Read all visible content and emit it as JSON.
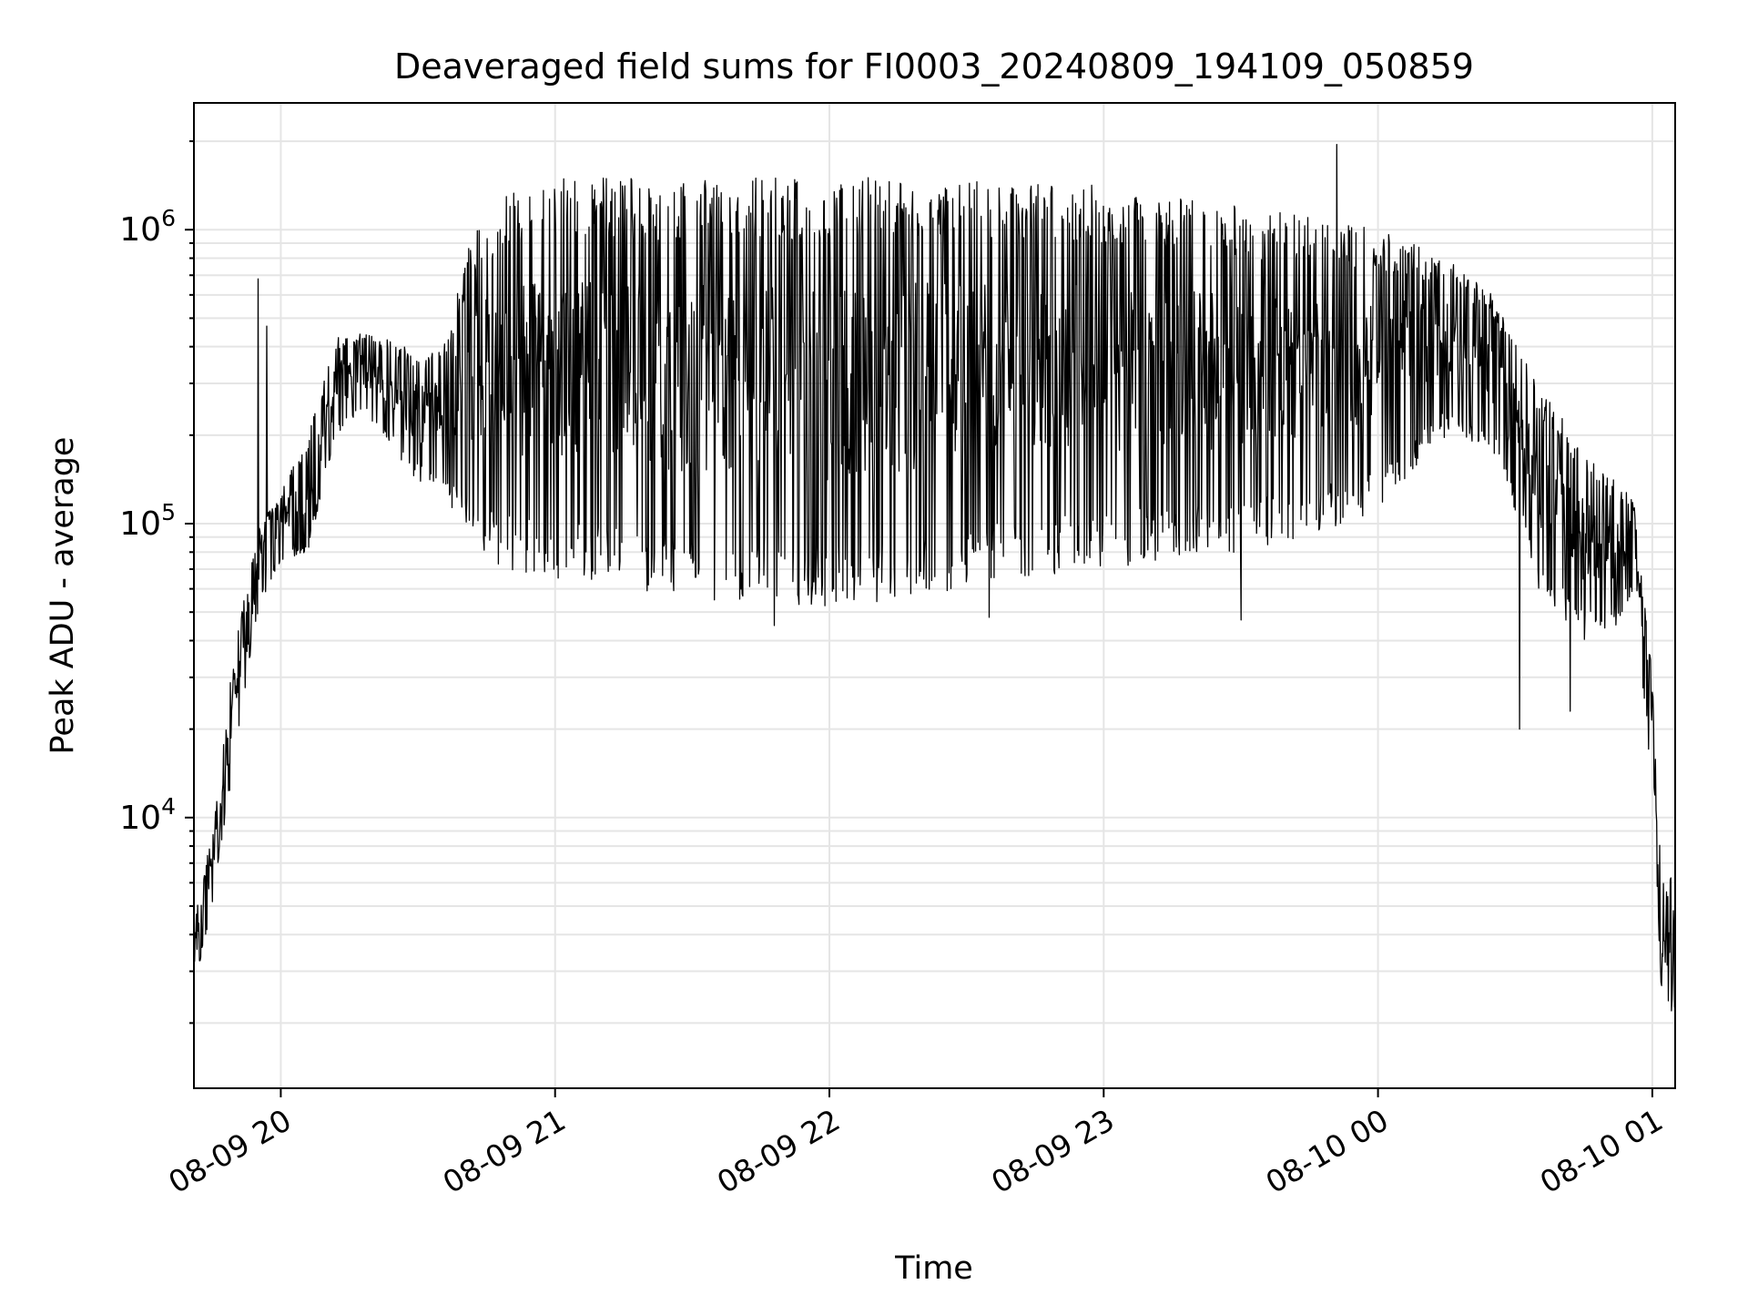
{
  "chart_data": {
    "type": "line",
    "title": "Deaveraged field sums for FI0003_20240809_194109_050859",
    "xlabel": "Time",
    "ylabel": "Peak ADU - average",
    "x_scale": "time",
    "y_scale": "log",
    "xlim": [
      "2024-08-09T19:41",
      "2024-08-10T01:05"
    ],
    "ylim": [
      1200,
      2700000
    ],
    "grid": true,
    "legend": "none",
    "colors": {
      "line": "#000000",
      "grid": "#e5e5e5",
      "axes": "#000000"
    },
    "x_ticks": [
      {
        "value": "2024-08-09T20:00",
        "label": "08-09 20"
      },
      {
        "value": "2024-08-09T21:00",
        "label": "08-09 21"
      },
      {
        "value": "2024-08-09T22:00",
        "label": "08-09 22"
      },
      {
        "value": "2024-08-09T23:00",
        "label": "08-09 23"
      },
      {
        "value": "2024-08-10T00:00",
        "label": "08-10 00"
      },
      {
        "value": "2024-08-10T01:00",
        "label": "08-10 01"
      }
    ],
    "y_ticks": [
      {
        "value": 10000,
        "base": "10",
        "exp": "4"
      },
      {
        "value": 100000,
        "base": "10",
        "exp": "5"
      },
      {
        "value": 1000000,
        "base": "10",
        "exp": "6"
      }
    ],
    "series": [
      {
        "color": "#000000",
        "envelope": {
          "x": [
            "2024-08-09T19:41",
            "2024-08-09T19:45",
            "2024-08-09T19:50",
            "2024-08-09T19:55",
            "2024-08-09T20:00",
            "2024-08-09T20:06",
            "2024-08-09T20:12",
            "2024-08-09T20:18",
            "2024-08-09T20:24",
            "2024-08-09T20:30",
            "2024-08-09T20:36",
            "2024-08-09T20:42",
            "2024-08-09T20:48",
            "2024-08-09T21:00",
            "2024-08-09T21:15",
            "2024-08-09T21:30",
            "2024-08-09T21:45",
            "2024-08-09T22:00",
            "2024-08-09T22:15",
            "2024-08-09T22:30",
            "2024-08-09T22:45",
            "2024-08-09T23:00",
            "2024-08-09T23:15",
            "2024-08-09T23:30",
            "2024-08-09T23:45",
            "2024-08-10T00:00",
            "2024-08-10T00:15",
            "2024-08-10T00:25",
            "2024-08-10T00:35",
            "2024-08-10T00:45",
            "2024-08-10T00:52",
            "2024-08-10T00:56",
            "2024-08-10T01:00",
            "2024-08-10T01:02",
            "2024-08-10T01:05"
          ],
          "upper": [
            4500,
            9000,
            40000,
            95000,
            130000,
            200000,
            430000,
            450000,
            420000,
            380000,
            430000,
            1000000,
            1300000,
            1500000,
            1500000,
            1500000,
            1500000,
            1500000,
            1550000,
            1500000,
            1500000,
            1400000,
            1300000,
            1200000,
            1100000,
            1000000,
            800000,
            600000,
            300000,
            180000,
            140000,
            120000,
            30000,
            6000,
            6500
          ],
          "lower": [
            2600,
            5000,
            16000,
            50000,
            75000,
            80000,
            200000,
            240000,
            180000,
            140000,
            120000,
            90000,
            70000,
            65000,
            60000,
            55000,
            55000,
            50000,
            55000,
            60000,
            65000,
            70000,
            75000,
            80000,
            90000,
            110000,
            200000,
            180000,
            60000,
            40000,
            45000,
            60000,
            12000,
            2500,
            2000
          ]
        },
        "spikes": [
          {
            "x": "2024-08-09T19:55",
            "y": 680000
          },
          {
            "x": "2024-08-09T19:57",
            "y": 470000
          },
          {
            "x": "2024-08-09T20:44",
            "y": 800000
          },
          {
            "x": "2024-08-09T20:48",
            "y": 1000000
          },
          {
            "x": "2024-08-09T21:48",
            "y": 45000
          },
          {
            "x": "2024-08-09T22:35",
            "y": 48000
          },
          {
            "x": "2024-08-09T23:30",
            "y": 47000
          },
          {
            "x": "2024-08-09T23:51",
            "y": 1950000
          },
          {
            "x": "2024-08-10T00:31",
            "y": 20000
          },
          {
            "x": "2024-08-10T00:42",
            "y": 23000
          }
        ]
      }
    ]
  }
}
